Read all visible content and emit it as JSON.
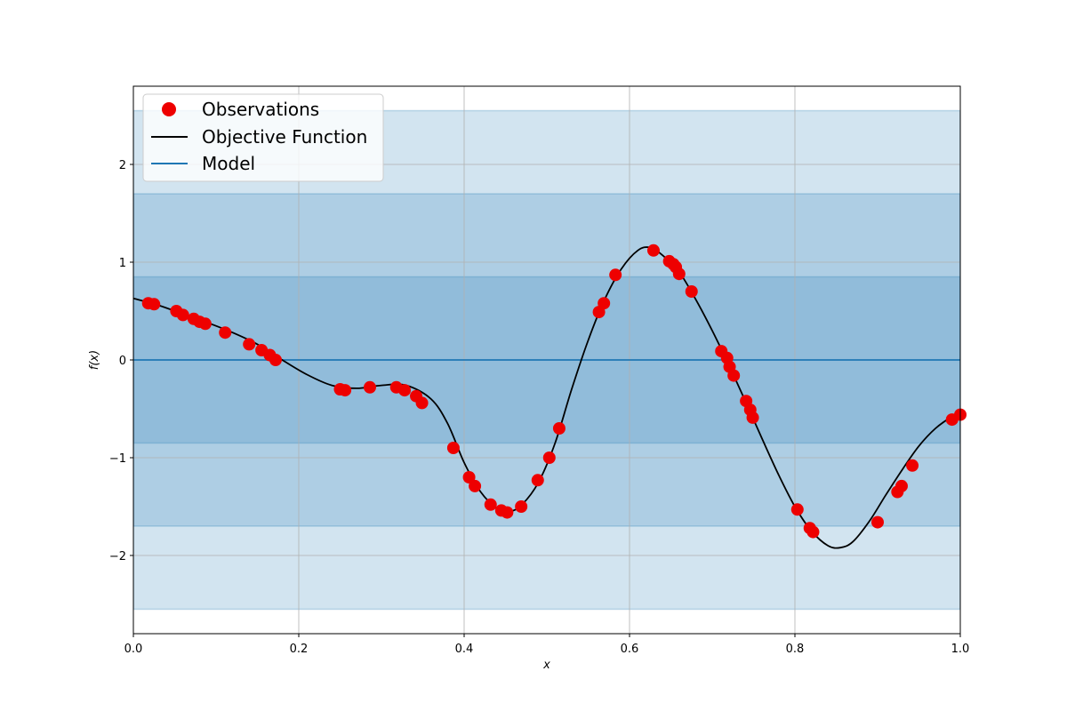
{
  "chart_data": {
    "type": "scatter",
    "title": "",
    "xlabel": "x",
    "ylabel": "f(x)",
    "xlim": [
      0.0,
      1.0
    ],
    "ylim": [
      -2.8,
      2.8
    ],
    "xticks": [
      0.0,
      0.2,
      0.4,
      0.6,
      0.8,
      1.0
    ],
    "xtick_labels": [
      "0.0",
      "0.2",
      "0.4",
      "0.6",
      "0.8",
      "1.0"
    ],
    "yticks": [
      -2,
      -1,
      0,
      1,
      2
    ],
    "ytick_labels": [
      "−2",
      "−1",
      "0",
      "1",
      "2"
    ],
    "grid": true,
    "legend": {
      "placement": "upper-left",
      "entries": [
        "Observations",
        "Objective Function",
        "Model"
      ]
    },
    "model": {
      "name": "Model",
      "mean": 0.0,
      "bands": [
        {
          "lower": -0.85,
          "upper": 0.85
        },
        {
          "lower": -1.7,
          "upper": 1.7
        },
        {
          "lower": -2.55,
          "upper": 2.55
        }
      ]
    },
    "objective_function": {
      "name": "Objective Function",
      "x": [
        0.0,
        0.03,
        0.06,
        0.09,
        0.12,
        0.15,
        0.18,
        0.21,
        0.24,
        0.27,
        0.3,
        0.33,
        0.36,
        0.38,
        0.4,
        0.42,
        0.44,
        0.455,
        0.47,
        0.49,
        0.51,
        0.53,
        0.55,
        0.57,
        0.59,
        0.61,
        0.625,
        0.64,
        0.66,
        0.68,
        0.7,
        0.72,
        0.74,
        0.76,
        0.78,
        0.8,
        0.82,
        0.84,
        0.855,
        0.87,
        0.89,
        0.91,
        0.93,
        0.95,
        0.97,
        0.99,
        1.0
      ],
      "y": [
        0.63,
        0.56,
        0.47,
        0.38,
        0.28,
        0.16,
        0.0,
        -0.15,
        -0.26,
        -0.29,
        -0.26,
        -0.26,
        -0.4,
        -0.65,
        -1.05,
        -1.35,
        -1.52,
        -1.55,
        -1.48,
        -1.25,
        -0.85,
        -0.3,
        0.2,
        0.62,
        0.93,
        1.12,
        1.15,
        1.07,
        0.9,
        0.62,
        0.3,
        -0.05,
        -0.42,
        -0.8,
        -1.17,
        -1.5,
        -1.75,
        -1.9,
        -1.92,
        -1.86,
        -1.65,
        -1.38,
        -1.12,
        -0.88,
        -0.7,
        -0.58,
        -0.55
      ]
    },
    "observations": {
      "name": "Observations",
      "x": [
        0.018,
        0.025,
        0.052,
        0.06,
        0.073,
        0.08,
        0.087,
        0.111,
        0.14,
        0.155,
        0.165,
        0.172,
        0.25,
        0.256,
        0.286,
        0.318,
        0.328,
        0.342,
        0.349,
        0.387,
        0.406,
        0.413,
        0.432,
        0.445,
        0.452,
        0.469,
        0.489,
        0.503,
        0.515,
        0.563,
        0.569,
        0.583,
        0.629,
        0.648,
        0.653,
        0.656,
        0.66,
        0.675,
        0.711,
        0.718,
        0.721,
        0.726,
        0.741,
        0.746,
        0.749,
        0.803,
        0.818,
        0.822,
        0.9,
        0.924,
        0.929,
        0.942,
        0.99,
        1.0
      ],
      "y": [
        0.58,
        0.57,
        0.5,
        0.46,
        0.42,
        0.39,
        0.37,
        0.28,
        0.16,
        0.1,
        0.05,
        0.0,
        -0.3,
        -0.31,
        -0.28,
        -0.28,
        -0.31,
        -0.37,
        -0.44,
        -0.9,
        -1.2,
        -1.29,
        -1.48,
        -1.54,
        -1.56,
        -1.5,
        -1.23,
        -1.0,
        -0.7,
        0.49,
        0.58,
        0.87,
        1.12,
        1.01,
        0.98,
        0.95,
        0.88,
        0.7,
        0.09,
        0.02,
        -0.07,
        -0.16,
        -0.42,
        -0.51,
        -0.59,
        -1.53,
        -1.72,
        -1.76,
        -1.66,
        -1.35,
        -1.29,
        -1.08,
        -0.61,
        -0.56
      ]
    },
    "colors": {
      "observations": "#ee0000",
      "objective": "#000000",
      "model": "#1f77b4",
      "band": "#1f77b4",
      "grid": "#b0b0b0"
    }
  }
}
